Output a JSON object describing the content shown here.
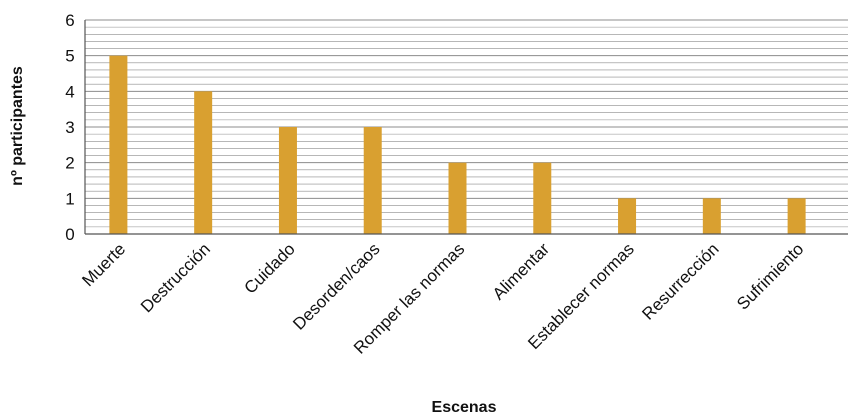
{
  "chart_data": {
    "type": "bar",
    "title": "",
    "xlabel": "Escenas",
    "ylabel": "nº participantes",
    "ylim": [
      0,
      6
    ],
    "yticks": [
      0,
      1,
      2,
      3,
      4,
      5,
      6
    ],
    "minor_grid_step": 0.2,
    "grid": true,
    "legend": "none",
    "categories": [
      "Muerte",
      "Destrucción",
      "Cuidado",
      "Desorden/caos",
      "Romper las normas",
      "Alimentar",
      "Establecer normas",
      "Resurrección",
      "Sufrimiento"
    ],
    "values": [
      5,
      4,
      3,
      3,
      2,
      2,
      1,
      1,
      1
    ],
    "colors": {
      "bar": "#D9A030",
      "grid": "#8c8c8c",
      "axis": "#555555"
    }
  }
}
